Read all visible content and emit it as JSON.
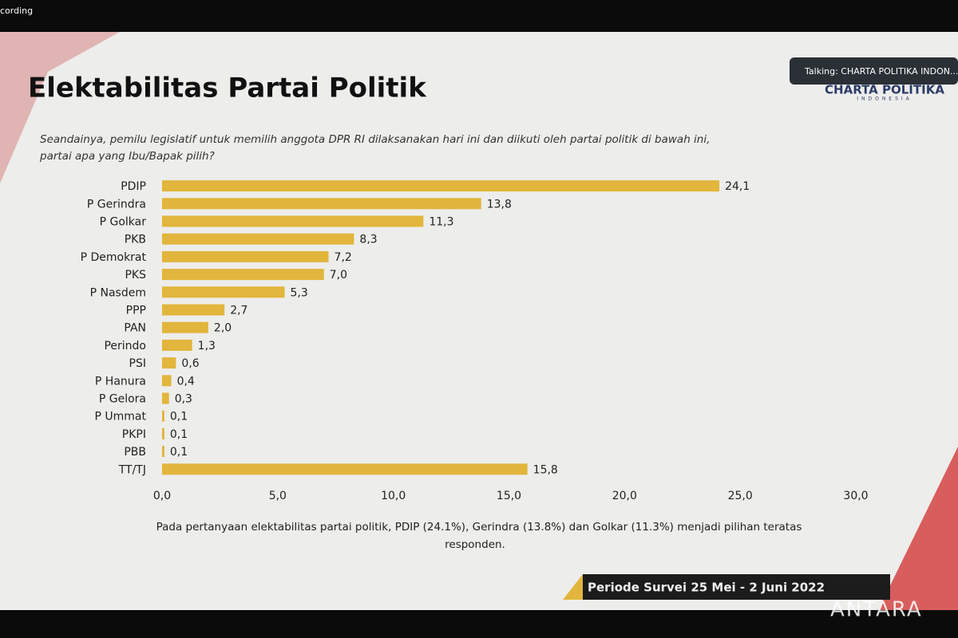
{
  "recording": "cording",
  "speaker": "Talking: CHARTA POLITIKA INDON...",
  "logo": {
    "name": "CHARTA POLITIKA",
    "sub": "INDONESIA"
  },
  "period": "Periode Survei 25 Mei - 2 Juni 2022",
  "watermark": "ANTARA",
  "chart_data": {
    "type": "bar",
    "orientation": "horizontal",
    "title": "Elektabilitas Partai Politik",
    "subtitle": [
      "Seandainya, pemilu legislatif untuk memilih anggota DPR RI dilaksanakan hari ini dan diikuti oleh partai politik di bawah ini,",
      "partai apa yang Ibu/Bapak pilih?"
    ],
    "note": [
      "Pada pertanyaan elektabilitas partai politik, PDIP (24.1%), Gerindra (13.8%) dan Golkar (11.3%) menjadi pilihan teratas",
      "responden."
    ],
    "categories": [
      "PDIP",
      "P Gerindra",
      "P Golkar",
      "PKB",
      "P Demokrat",
      "PKS",
      "P Nasdem",
      "PPP",
      "PAN",
      "Perindo",
      "PSI",
      "P Hanura",
      "P Gelora",
      "P Ummat",
      "PKPI",
      "PBB",
      "TT/TJ"
    ],
    "values": [
      24.1,
      13.8,
      11.3,
      8.3,
      7.2,
      7.0,
      5.3,
      2.7,
      2.0,
      1.3,
      0.6,
      0.4,
      0.3,
      0.1,
      0.1,
      0.1,
      15.8
    ],
    "value_labels": [
      "24,1",
      "13,8",
      "11,3",
      "8,3",
      "7,2",
      "7,0",
      "5,3",
      "2,7",
      "2,0",
      "1,3",
      "0,6",
      "0,4",
      "0,3",
      "0,1",
      "0,1",
      "0,1",
      "15,8"
    ],
    "color": "#e2b53c",
    "xlim": [
      0,
      30
    ],
    "xticks": [
      {
        "value": 0,
        "label": "0,0"
      },
      {
        "value": 5,
        "label": "5,0"
      },
      {
        "value": 10,
        "label": "10,0"
      },
      {
        "value": 15,
        "label": "15,0"
      },
      {
        "value": 20,
        "label": "20,0"
      },
      {
        "value": 25,
        "label": "25,0"
      },
      {
        "value": 30,
        "label": "30,0"
      }
    ],
    "grid": false
  }
}
